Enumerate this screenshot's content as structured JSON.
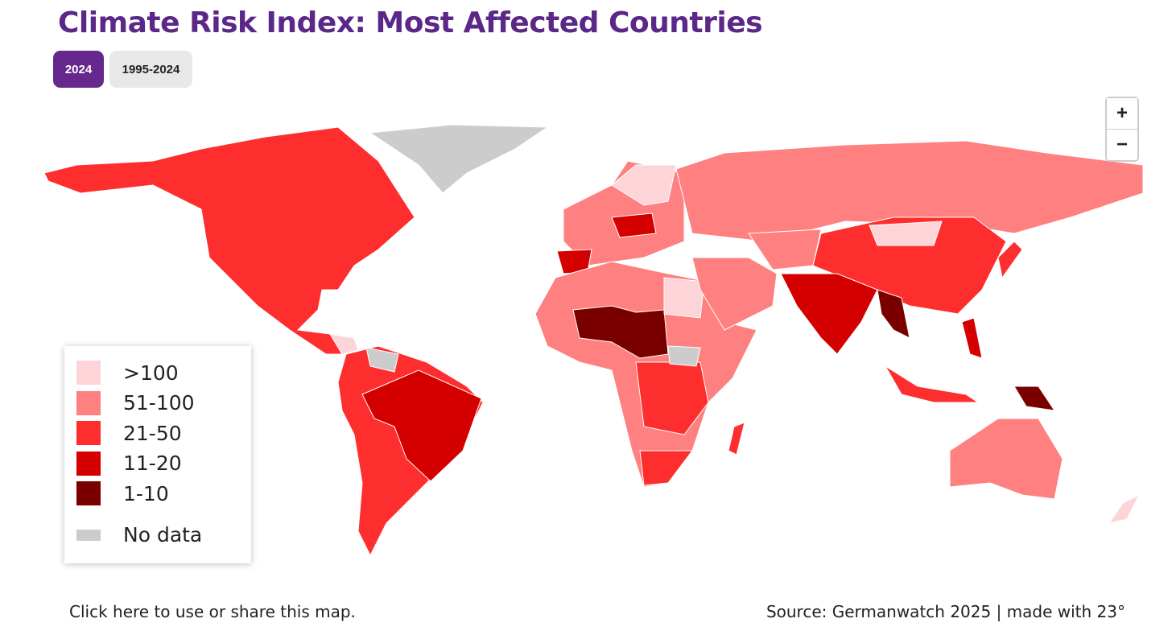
{
  "header": {
    "title": "Climate Risk Index: Most Affected Countries",
    "tabs": [
      {
        "label": "2024",
        "active": true
      },
      {
        "label": "1995-2024",
        "active": false
      }
    ]
  },
  "zoom": {
    "in": "+",
    "out": "−"
  },
  "legend": {
    "items": [
      {
        "label": ">100",
        "color": "#fdd5d8"
      },
      {
        "label": "51-100",
        "color": "#ff8080"
      },
      {
        "label": "21-50",
        "color": "#ff2e2e"
      },
      {
        "label": "11-20",
        "color": "#d40000"
      },
      {
        "label": "1-10",
        "color": "#7a0000"
      }
    ],
    "no_data": {
      "label": "No data",
      "color": "#cccccc"
    }
  },
  "footer": {
    "link": "Click here to use or share this map.",
    "source": "Source: Germanwatch 2025 | made with 23°"
  }
}
